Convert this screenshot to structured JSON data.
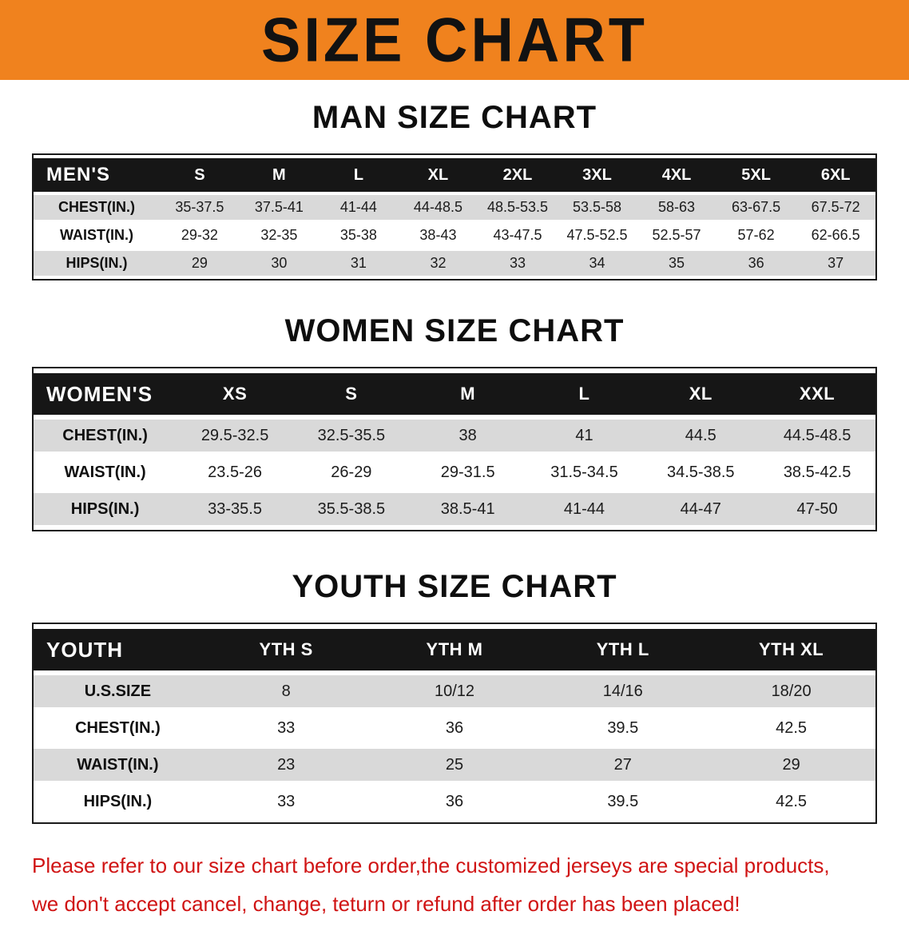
{
  "banner": {
    "title": "SIZE CHART"
  },
  "colors": {
    "banner_bg": "#f0821e",
    "table_header_bg": "#161616",
    "row_gray": "#d9d9d9",
    "disclaimer_red": "#d01414"
  },
  "sections": [
    {
      "id": "men",
      "heading": "MAN SIZE CHART",
      "table": {
        "header": [
          "MEN'S",
          "S",
          "M",
          "L",
          "XL",
          "2XL",
          "3XL",
          "4XL",
          "5XL",
          "6XL"
        ],
        "rows": [
          [
            "CHEST(IN.)",
            "35-37.5",
            "37.5-41",
            "41-44",
            "44-48.5",
            "48.5-53.5",
            "53.5-58",
            "58-63",
            "63-67.5",
            "67.5-72"
          ],
          [
            "WAIST(IN.)",
            "29-32",
            "32-35",
            "35-38",
            "38-43",
            "43-47.5",
            "47.5-52.5",
            "52.5-57",
            "57-62",
            "62-66.5"
          ],
          [
            "HIPS(IN.)",
            "29",
            "30",
            "31",
            "32",
            "33",
            "34",
            "35",
            "36",
            "37"
          ]
        ]
      }
    },
    {
      "id": "women",
      "heading": "WOMEN SIZE CHART",
      "table": {
        "header": [
          "WOMEN'S",
          "XS",
          "S",
          "M",
          "L",
          "XL",
          "XXL"
        ],
        "rows": [
          [
            "CHEST(IN.)",
            "29.5-32.5",
            "32.5-35.5",
            "38",
            "41",
            "44.5",
            "44.5-48.5"
          ],
          [
            "WAIST(IN.)",
            "23.5-26",
            "26-29",
            "29-31.5",
            "31.5-34.5",
            "34.5-38.5",
            "38.5-42.5"
          ],
          [
            "HIPS(IN.)",
            "33-35.5",
            "35.5-38.5",
            "38.5-41",
            "41-44",
            "44-47",
            "47-50"
          ]
        ]
      }
    },
    {
      "id": "youth",
      "heading": "YOUTH SIZE CHART",
      "table": {
        "header": [
          "YOUTH",
          "YTH S",
          "YTH M",
          "YTH L",
          "YTH XL"
        ],
        "rows": [
          [
            "U.S.SIZE",
            "8",
            "10/12",
            "14/16",
            "18/20"
          ],
          [
            "CHEST(IN.)",
            "33",
            "36",
            "39.5",
            "42.5"
          ],
          [
            "WAIST(IN.)",
            "23",
            "25",
            "27",
            "29"
          ],
          [
            "HIPS(IN.)",
            "33",
            "36",
            "39.5",
            "42.5"
          ]
        ]
      }
    }
  ],
  "disclaimer": {
    "line1": "Please refer to our size chart before order,the customized jerseys are special products,",
    "line2": "we don't accept cancel, change, teturn or refund after order has been placed!"
  }
}
